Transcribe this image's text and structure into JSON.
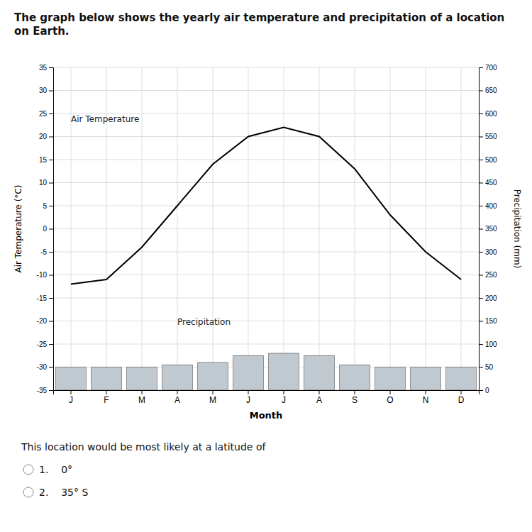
{
  "chart_data": {
    "type": "bar",
    "title": "The graph below shows the yearly air temperature and precipitation of a location on Earth.",
    "xlabel": "Month",
    "ylabel": "Air Temperature (°C)",
    "y2label": "Precipitation (mm)",
    "categories": [
      "J",
      "F",
      "M",
      "A",
      "M",
      "J",
      "J",
      "A",
      "S",
      "O",
      "N",
      "D"
    ],
    "series": [
      {
        "name": "Precipitation",
        "type": "bar",
        "axis": "y2",
        "color": "#c0c8d0",
        "values": [
          50,
          50,
          50,
          55,
          60,
          75,
          80,
          75,
          55,
          50,
          50,
          50
        ]
      },
      {
        "name": "Air Temperature",
        "type": "line",
        "color": "#000000",
        "values": [
          -12,
          -11,
          -4,
          5,
          14,
          20,
          22,
          20,
          13,
          3,
          -5,
          -11
        ]
      }
    ],
    "ylim": [
      -35,
      35
    ],
    "yticks": [
      -35,
      -30,
      -25,
      -20,
      -15,
      -10,
      -5,
      0,
      5,
      10,
      15,
      20,
      25,
      30,
      35
    ],
    "y2lim": [
      0,
      700
    ],
    "y2ticks": [
      0,
      50,
      100,
      150,
      200,
      250,
      300,
      350,
      400,
      450,
      500,
      550,
      600,
      650,
      700
    ],
    "grid": true,
    "annotations": [
      "This location would be most likely at a latitude of",
      "1.    0°",
      "2.    35° S"
    ]
  }
}
